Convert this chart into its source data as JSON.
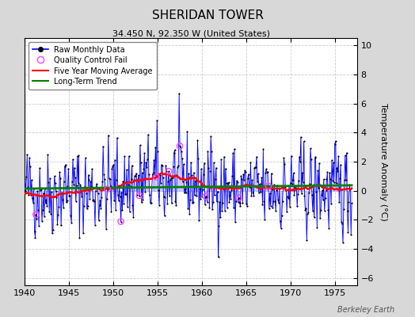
{
  "title": "SHERIDAN TOWER",
  "subtitle": "34.450 N, 92.350 W (United States)",
  "ylabel": "Temperature Anomaly (°C)",
  "credit": "Berkeley Earth",
  "xlim": [
    1940,
    1977.5
  ],
  "ylim": [
    -6.5,
    10.5
  ],
  "yticks": [
    -6,
    -4,
    -2,
    0,
    2,
    4,
    6,
    8,
    10
  ],
  "xticks": [
    1940,
    1945,
    1950,
    1955,
    1960,
    1965,
    1970,
    1975
  ],
  "fig_bg": "#d8d8d8",
  "plot_bg": "#ffffff",
  "seed": 42,
  "n_months": 444,
  "start_year": 1940,
  "qc_fail_indices": [
    15,
    112,
    130,
    155,
    178,
    195,
    210,
    245,
    290,
    330
  ],
  "trend_slope": 0.0008
}
